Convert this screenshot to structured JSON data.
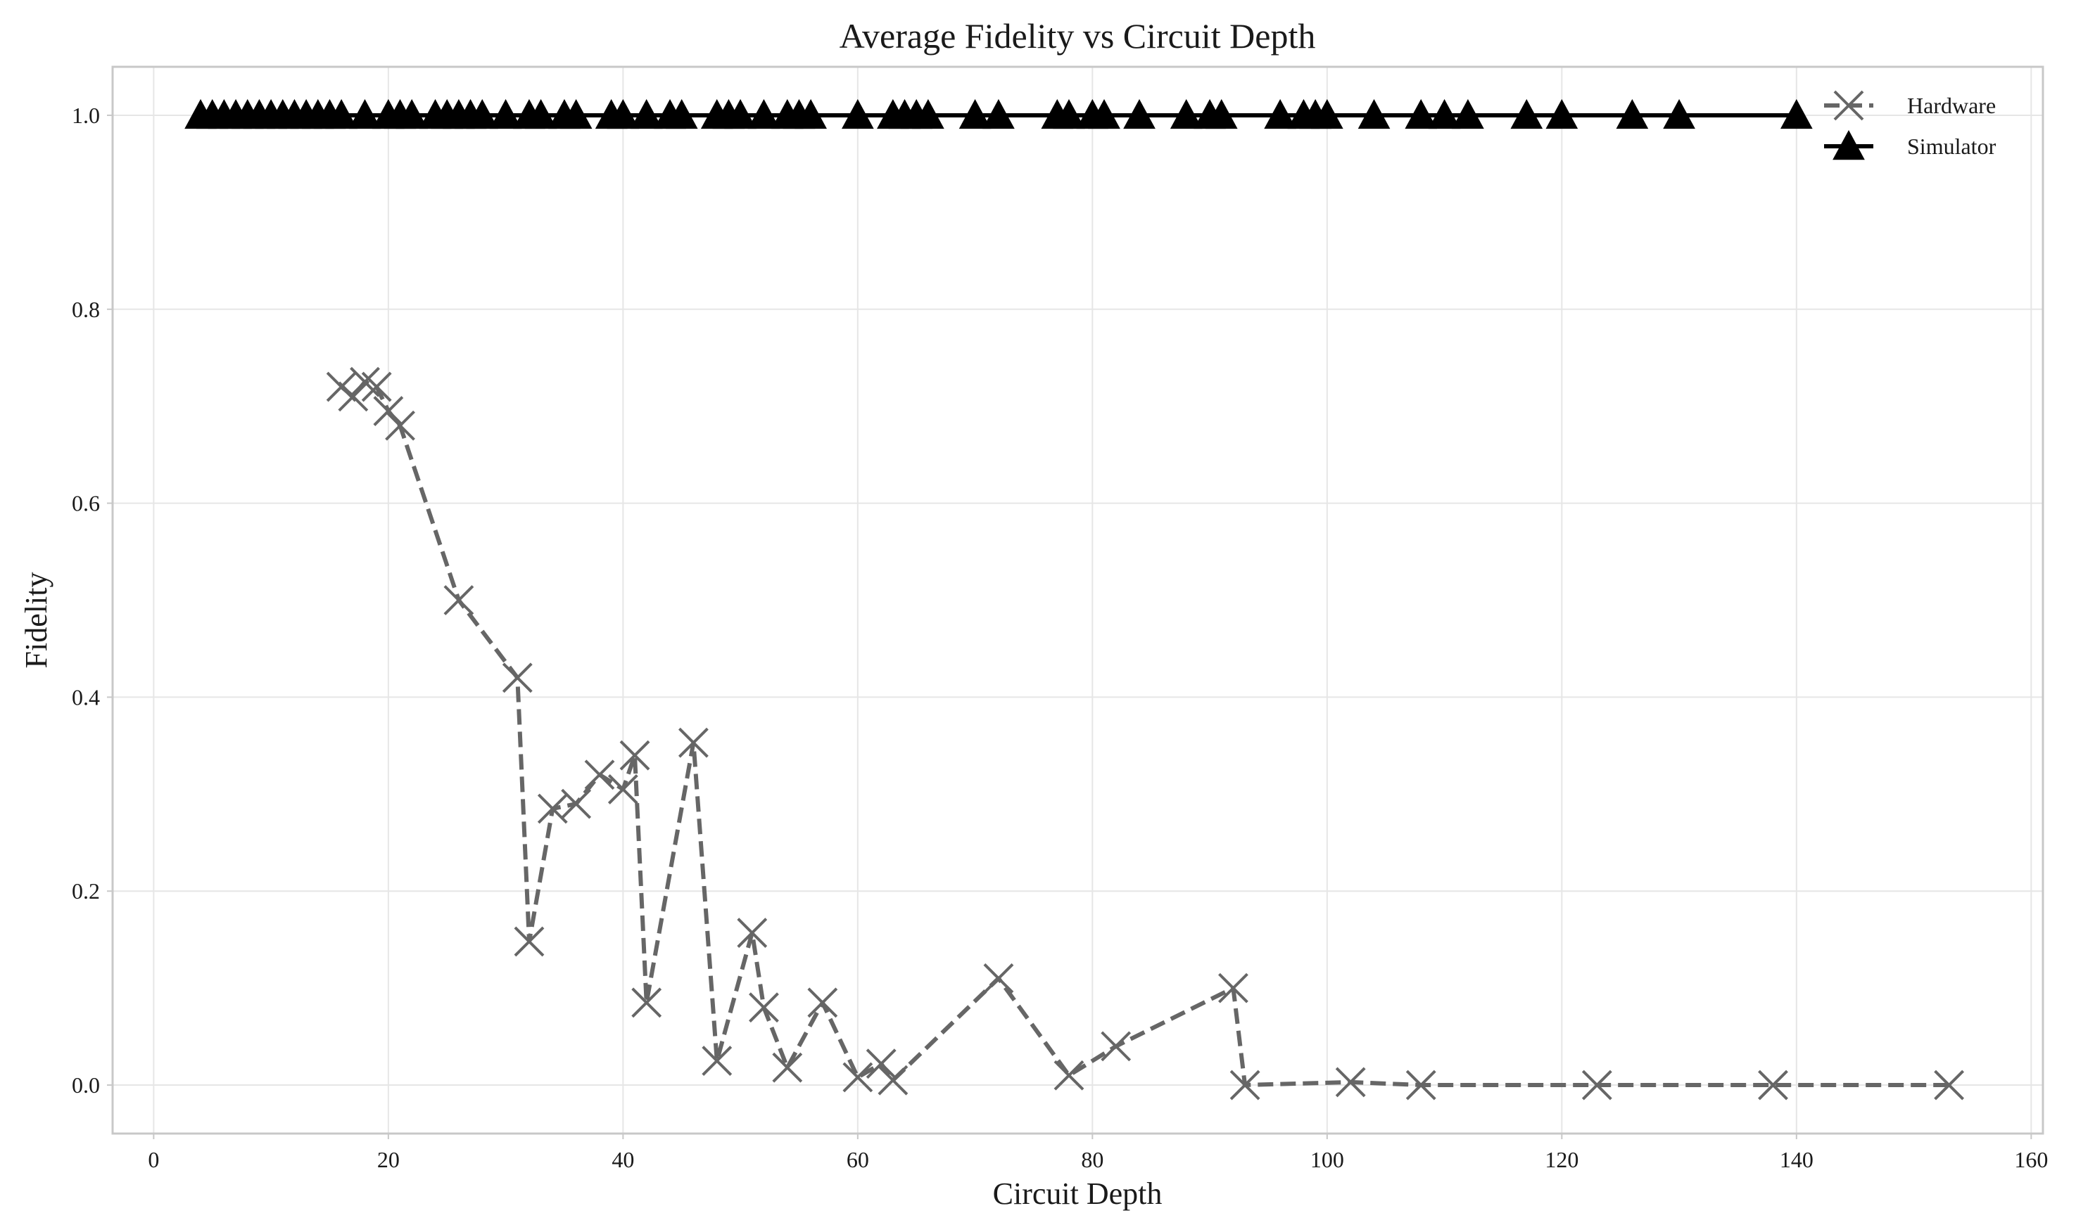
{
  "chart_data": {
    "type": "line",
    "title": "Average Fidelity vs Circuit Depth",
    "xlabel": "Circuit Depth",
    "ylabel": "Fidelity",
    "xlim": [
      -3.5,
      161
    ],
    "ylim": [
      -0.05,
      1.05
    ],
    "xticks": [
      0,
      20,
      40,
      60,
      80,
      100,
      120,
      140,
      160
    ],
    "yticks": [
      0.0,
      0.2,
      0.4,
      0.6,
      0.8,
      1.0
    ],
    "xtick_labels": [
      "0",
      "20",
      "40",
      "60",
      "80",
      "100",
      "120",
      "140",
      "160"
    ],
    "ytick_labels": [
      "0.0",
      "0.2",
      "0.4",
      "0.6",
      "0.8",
      "1.0"
    ],
    "grid": true,
    "legend_position": "top-right",
    "series": [
      {
        "name": "Hardware",
        "color": "#666666",
        "line_style": "dashed",
        "marker": "x",
        "x": [
          16,
          17,
          18,
          19,
          20,
          21,
          26,
          31,
          32,
          34,
          36,
          38,
          40,
          41,
          42,
          46,
          48,
          51,
          52,
          54,
          57,
          60,
          62,
          63,
          72,
          78,
          82,
          92,
          93,
          102,
          108,
          123,
          138,
          153
        ],
        "y": [
          0.72,
          0.71,
          0.725,
          0.72,
          0.695,
          0.68,
          0.5,
          0.42,
          0.148,
          0.285,
          0.29,
          0.32,
          0.305,
          0.34,
          0.085,
          0.353,
          0.025,
          0.157,
          0.08,
          0.018,
          0.085,
          0.008,
          0.022,
          0.005,
          0.11,
          0.01,
          0.04,
          0.1,
          0.0,
          0.003,
          0.0,
          0.0,
          0.0,
          0.0
        ]
      },
      {
        "name": "Simulator",
        "color": "#000000",
        "line_style": "solid",
        "marker": "triangle-up",
        "x": [
          4,
          5,
          6,
          7,
          8,
          9,
          10,
          11,
          12,
          13,
          14,
          15,
          16,
          18,
          20,
          21,
          22,
          24,
          25,
          26,
          27,
          28,
          30,
          32,
          33,
          35,
          36,
          39,
          40,
          42,
          44,
          45,
          48,
          49,
          50,
          52,
          54,
          55,
          56,
          60,
          63,
          64,
          65,
          66,
          70,
          72,
          77,
          78,
          80,
          81,
          84,
          88,
          90,
          91,
          96,
          98,
          99,
          100,
          104,
          108,
          110,
          112,
          117,
          120,
          126,
          130,
          140
        ],
        "y": [
          1,
          1,
          1,
          1,
          1,
          1,
          1,
          1,
          1,
          1,
          1,
          1,
          1,
          1,
          1,
          1,
          1,
          1,
          1,
          1,
          1,
          1,
          1,
          1,
          1,
          1,
          1,
          1,
          1,
          1,
          1,
          1,
          1,
          1,
          1,
          1,
          1,
          1,
          1,
          1,
          1,
          1,
          1,
          1,
          1,
          1,
          1,
          1,
          1,
          1,
          1,
          1,
          1,
          1,
          1,
          1,
          1,
          1,
          1,
          1,
          1,
          1,
          1,
          1,
          1,
          1,
          1
        ]
      }
    ]
  }
}
